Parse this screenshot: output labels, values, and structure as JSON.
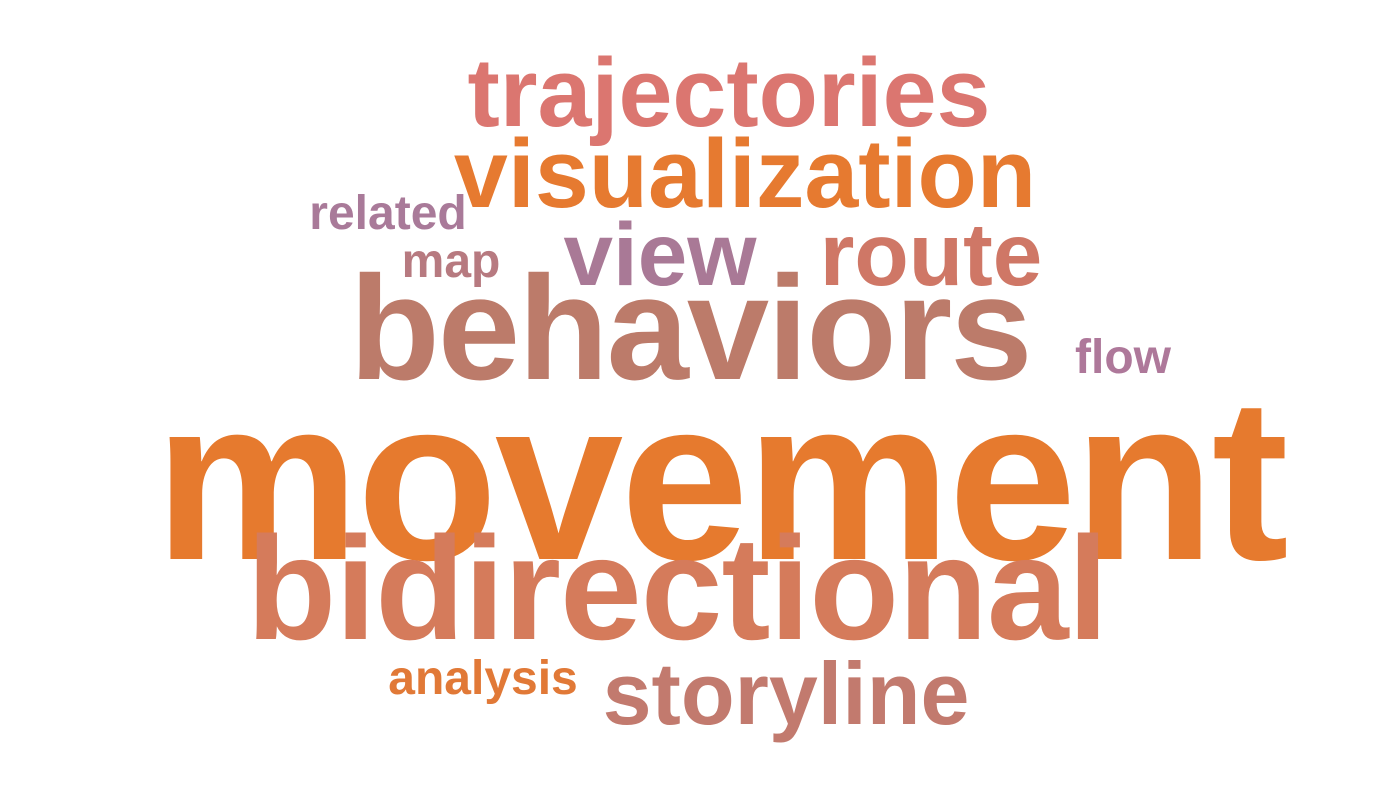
{
  "word_cloud": {
    "words": [
      {
        "text": "movement",
        "color": "#E67A2E"
      },
      {
        "text": "behaviors",
        "color": "#BC7B6A"
      },
      {
        "text": "bidirectional",
        "color": "#D57B5B"
      },
      {
        "text": "trajectories",
        "color": "#DB7670"
      },
      {
        "text": "visualization",
        "color": "#E67A30"
      },
      {
        "text": "view",
        "color": "#A97996"
      },
      {
        "text": "route",
        "color": "#CF7766"
      },
      {
        "text": "storyline",
        "color": "#C27A6E"
      },
      {
        "text": "related",
        "color": "#A97A99"
      },
      {
        "text": "map",
        "color": "#B77A80"
      },
      {
        "text": "flow",
        "color": "#AE789A"
      },
      {
        "text": "analysis",
        "color": "#E17937"
      }
    ]
  }
}
